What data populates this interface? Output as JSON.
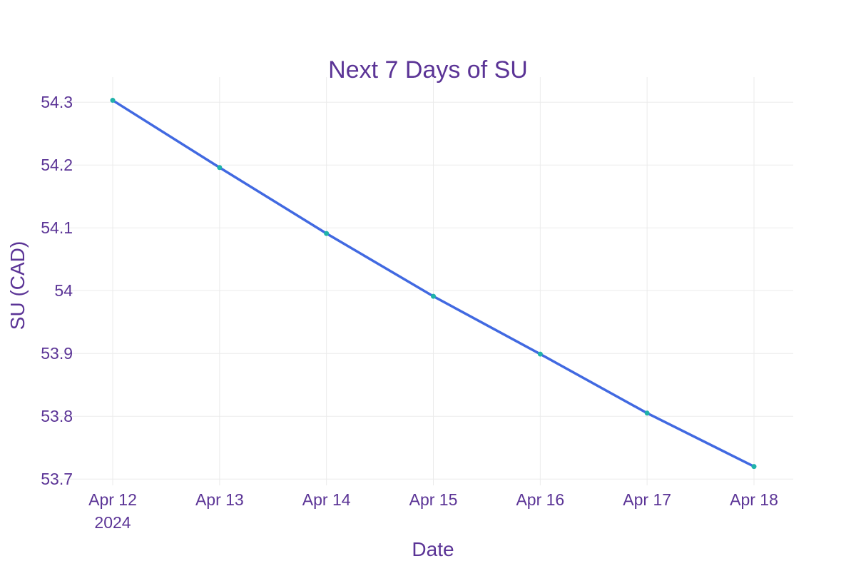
{
  "chart_data": {
    "type": "line",
    "title": "Next 7 Days of SU",
    "xlabel": "Date",
    "ylabel": "SU (CAD)",
    "x": [
      "2024-04-12",
      "2024-04-13",
      "2024-04-14",
      "2024-04-15",
      "2024-04-16",
      "2024-04-17",
      "2024-04-18"
    ],
    "x_tick_labels": [
      "Apr 12",
      "Apr 13",
      "Apr 14",
      "Apr 15",
      "Apr 16",
      "Apr 17",
      "Apr 18"
    ],
    "x_tick_year": "2024",
    "y_ticks": [
      53.7,
      53.8,
      53.9,
      54,
      54.1,
      54.2,
      54.3
    ],
    "y_tick_labels": [
      "53.7",
      "53.8",
      "53.9",
      "54",
      "54.1",
      "54.2",
      "54.3"
    ],
    "ylim": [
      53.69,
      54.34
    ],
    "grid": true,
    "legend": "none",
    "series": [
      {
        "values": [
          54.303,
          54.196,
          54.091,
          53.991,
          53.899,
          53.805,
          53.72
        ],
        "line_color": "#4169E1",
        "marker_color": "#20B2AA"
      }
    ],
    "colors": {
      "text": "#5B3496",
      "grid": "#EBEBEB",
      "background": "#FFFFFF"
    }
  }
}
